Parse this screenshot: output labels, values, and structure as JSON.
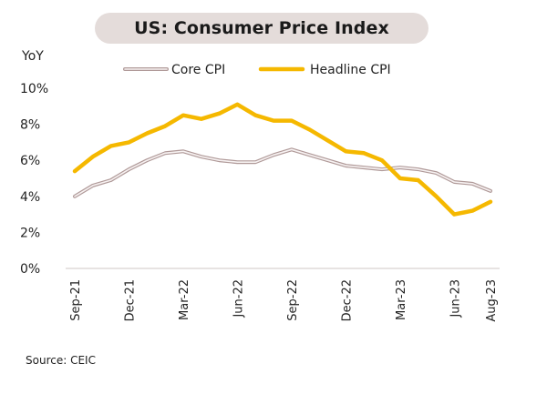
{
  "chart_data": {
    "type": "line",
    "title": "US: Consumer Price Index",
    "ylabel": "YoY",
    "ylim": [
      0,
      10
    ],
    "yticks": [
      "0%",
      "2%",
      "4%",
      "6%",
      "8%",
      "10%"
    ],
    "x_tick_labels": [
      "Sep-21",
      "Dec-21",
      "Mar-22",
      "Jun-22",
      "Sep-22",
      "Dec-22",
      "Mar-23",
      "Jun-23",
      "Aug-23"
    ],
    "x_tick_index": [
      0,
      3,
      6,
      9,
      12,
      15,
      18,
      21,
      23
    ],
    "categories": [
      "Sep-21",
      "Oct-21",
      "Nov-21",
      "Dec-21",
      "Jan-22",
      "Feb-22",
      "Mar-22",
      "Apr-22",
      "May-22",
      "Jun-22",
      "Jul-22",
      "Aug-22",
      "Sep-22",
      "Oct-22",
      "Nov-22",
      "Dec-22",
      "Jan-23",
      "Feb-23",
      "Mar-23",
      "Apr-23",
      "May-23",
      "Jun-23",
      "Jul-23",
      "Aug-23"
    ],
    "series": [
      {
        "name": "Core CPI",
        "color": "#b09a99",
        "values": [
          4.0,
          4.6,
          4.9,
          5.5,
          6.0,
          6.4,
          6.5,
          6.2,
          6.0,
          5.9,
          5.9,
          6.3,
          6.6,
          6.3,
          6.0,
          5.7,
          5.6,
          5.5,
          5.6,
          5.5,
          5.3,
          4.8,
          4.7,
          4.3
        ]
      },
      {
        "name": "Headline CPI",
        "color": "#f5b800",
        "values": [
          5.4,
          6.2,
          6.8,
          7.0,
          7.5,
          7.9,
          8.5,
          8.3,
          8.6,
          9.1,
          8.5,
          8.2,
          8.2,
          7.7,
          7.1,
          6.5,
          6.4,
          6.0,
          5.0,
          4.9,
          4.0,
          3.0,
          3.2,
          3.7
        ]
      }
    ],
    "legend_position": "top-center",
    "grid": false
  },
  "source": "Source: CEIC"
}
